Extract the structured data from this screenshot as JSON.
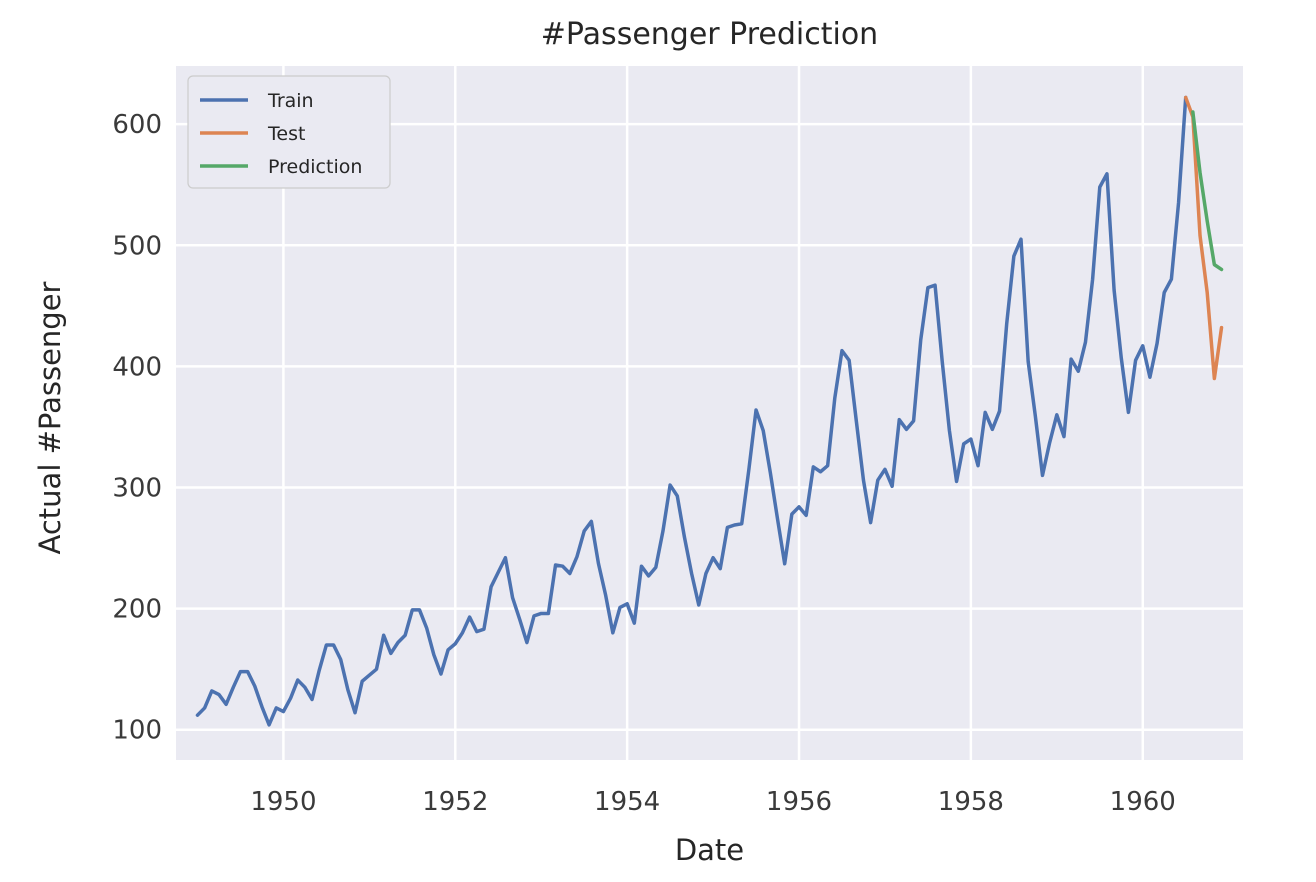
{
  "chart_data": {
    "type": "line",
    "title": "#Passenger Prediction",
    "xlabel": "Date",
    "ylabel": "Actual #Passenger",
    "x_ticks": [
      "1950",
      "1952",
      "1954",
      "1956",
      "1958",
      "1960"
    ],
    "y_ticks": [
      "100",
      "200",
      "300",
      "400",
      "500",
      "600"
    ],
    "xlim": [
      "1948-10",
      "1961-03"
    ],
    "ylim": [
      75,
      648
    ],
    "grid": true,
    "legend_position": "top-left",
    "series": [
      {
        "name": "Train",
        "color": "#4c72b0",
        "dates": [
          "1949-01",
          "1949-02",
          "1949-03",
          "1949-04",
          "1949-05",
          "1949-06",
          "1949-07",
          "1949-08",
          "1949-09",
          "1949-10",
          "1949-11",
          "1949-12",
          "1950-01",
          "1950-02",
          "1950-03",
          "1950-04",
          "1950-05",
          "1950-06",
          "1950-07",
          "1950-08",
          "1950-09",
          "1950-10",
          "1950-11",
          "1950-12",
          "1951-01",
          "1951-02",
          "1951-03",
          "1951-04",
          "1951-05",
          "1951-06",
          "1951-07",
          "1951-08",
          "1951-09",
          "1951-10",
          "1951-11",
          "1951-12",
          "1952-01",
          "1952-02",
          "1952-03",
          "1952-04",
          "1952-05",
          "1952-06",
          "1952-07",
          "1952-08",
          "1952-09",
          "1952-10",
          "1952-11",
          "1952-12",
          "1953-01",
          "1953-02",
          "1953-03",
          "1953-04",
          "1953-05",
          "1953-06",
          "1953-07",
          "1953-08",
          "1953-09",
          "1953-10",
          "1953-11",
          "1953-12",
          "1954-01",
          "1954-02",
          "1954-03",
          "1954-04",
          "1954-05",
          "1954-06",
          "1954-07",
          "1954-08",
          "1954-09",
          "1954-10",
          "1954-11",
          "1954-12",
          "1955-01",
          "1955-02",
          "1955-03",
          "1955-04",
          "1955-05",
          "1955-06",
          "1955-07",
          "1955-08",
          "1955-09",
          "1955-10",
          "1955-11",
          "1955-12",
          "1956-01",
          "1956-02",
          "1956-03",
          "1956-04",
          "1956-05",
          "1956-06",
          "1956-07",
          "1956-08",
          "1956-09",
          "1956-10",
          "1956-11",
          "1956-12",
          "1957-01",
          "1957-02",
          "1957-03",
          "1957-04",
          "1957-05",
          "1957-06",
          "1957-07",
          "1957-08",
          "1957-09",
          "1957-10",
          "1957-11",
          "1957-12",
          "1958-01",
          "1958-02",
          "1958-03",
          "1958-04",
          "1958-05",
          "1958-06",
          "1958-07",
          "1958-08",
          "1958-09",
          "1958-10",
          "1958-11",
          "1958-12",
          "1959-01",
          "1959-02",
          "1959-03",
          "1959-04",
          "1959-05",
          "1959-06",
          "1959-07",
          "1959-08",
          "1959-09",
          "1959-10",
          "1959-11",
          "1959-12",
          "1960-01",
          "1960-02",
          "1960-03",
          "1960-04",
          "1960-05",
          "1960-06",
          "1960-07"
        ],
        "values": [
          112,
          118,
          132,
          129,
          121,
          135,
          148,
          148,
          136,
          119,
          104,
          118,
          115,
          126,
          141,
          135,
          125,
          149,
          170,
          170,
          158,
          133,
          114,
          140,
          145,
          150,
          178,
          163,
          172,
          178,
          199,
          199,
          184,
          162,
          146,
          166,
          171,
          180,
          193,
          181,
          183,
          218,
          230,
          242,
          209,
          191,
          172,
          194,
          196,
          196,
          236,
          235,
          229,
          243,
          264,
          272,
          237,
          211,
          180,
          201,
          204,
          188,
          235,
          227,
          234,
          264,
          302,
          293,
          259,
          229,
          203,
          229,
          242,
          233,
          267,
          269,
          270,
          315,
          364,
          347,
          312,
          274,
          237,
          278,
          284,
          277,
          317,
          313,
          318,
          374,
          413,
          405,
          355,
          306,
          271,
          306,
          315,
          301,
          356,
          348,
          355,
          422,
          465,
          467,
          404,
          347,
          305,
          336,
          340,
          318,
          362,
          348,
          363,
          435,
          491,
          505,
          404,
          359,
          310,
          337,
          360,
          342,
          406,
          396,
          420,
          472,
          548,
          559,
          463,
          407,
          362,
          405,
          417,
          391,
          419,
          461,
          472,
          535,
          622
        ]
      },
      {
        "name": "Test",
        "color": "#dd8452",
        "dates": [
          "1960-07",
          "1960-08",
          "1960-09",
          "1960-10",
          "1960-11",
          "1960-12"
        ],
        "values": [
          622,
          606,
          508,
          461,
          390,
          432
        ]
      },
      {
        "name": "Prediction",
        "color": "#55a868",
        "dates": [
          "1960-08",
          "1960-09",
          "1960-10",
          "1960-11",
          "1960-12"
        ],
        "values": [
          610,
          560,
          520,
          484,
          480
        ]
      }
    ]
  }
}
